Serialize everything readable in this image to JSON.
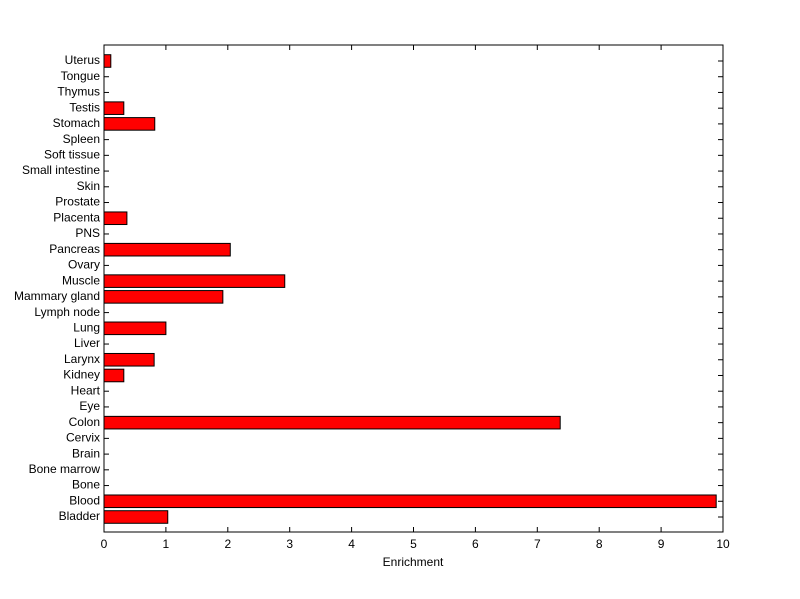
{
  "chart_data": {
    "type": "bar",
    "orientation": "horizontal",
    "xlabel": "Enrichment",
    "categories": [
      "Bladder",
      "Blood",
      "Bone",
      "Bone marrow",
      "Brain",
      "Cervix",
      "Colon",
      "Eye",
      "Heart",
      "Kidney",
      "Larynx",
      "Liver",
      "Lung",
      "Lymph node",
      "Mammary gland",
      "Muscle",
      "Ovary",
      "Pancreas",
      "PNS",
      "Placenta",
      "Prostate",
      "Skin",
      "Small intestine",
      "Soft tissue",
      "Spleen",
      "Stomach",
      "Testis",
      "Thymus",
      "Tongue",
      "Uterus"
    ],
    "values": [
      1.03,
      9.89,
      0,
      0,
      0,
      0,
      7.37,
      0,
      0,
      0.32,
      0.81,
      0,
      1.0,
      0,
      1.92,
      2.92,
      0,
      2.04,
      0,
      0.37,
      0,
      0,
      0,
      0,
      0,
      0.82,
      0.32,
      0,
      0,
      0.11
    ],
    "color": "#ff0000",
    "xlim": [
      0,
      10
    ],
    "xticks": [
      0,
      1,
      2,
      3,
      4,
      5,
      6,
      7,
      8,
      9,
      10
    ]
  }
}
